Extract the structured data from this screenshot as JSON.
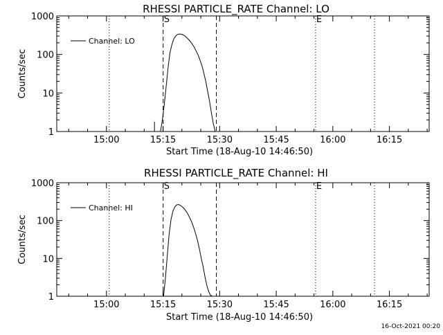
{
  "colors": {
    "background": "#ffffff",
    "foreground": "#000000"
  },
  "footer": {
    "timestamp": "16-Oct-2021 00:20"
  },
  "chart_data": [
    {
      "type": "line",
      "title": "RHESSI PARTICLE_RATE Channel: LO",
      "xlabel": "Start Time (18-Aug-10 14:46:50)",
      "ylabel": "Counts/sec",
      "yscale": "log",
      "ylim": [
        1,
        1000
      ],
      "xlim_minutes_after_start": [
        0,
        98.7
      ],
      "x_ticks": [
        {
          "label": "15:00",
          "minutes": 13.17
        },
        {
          "label": "15:15",
          "minutes": 28.17
        },
        {
          "label": "15:30",
          "minutes": 43.17
        },
        {
          "label": "15:45",
          "minutes": 58.17
        },
        {
          "label": "16:00",
          "minutes": 73.17
        },
        {
          "label": "16:15",
          "minutes": 88.17
        }
      ],
      "y_ticks": [
        {
          "label": "1",
          "value": 1
        },
        {
          "label": "10",
          "value": 10
        },
        {
          "label": "100",
          "value": 100
        },
        {
          "label": "1000",
          "value": 1000
        }
      ],
      "legend": {
        "label": "Channel: LO",
        "position": "top-left"
      },
      "markers": [
        {
          "label": "S",
          "minutes": 28.2,
          "style": "dashed",
          "show_label": true
        },
        {
          "label": "",
          "minutes": 42.3,
          "style": "dashed",
          "show_label": false
        },
        {
          "label": "",
          "minutes": 13.9,
          "style": "dotted",
          "show_label": false
        },
        {
          "label": "E",
          "minutes": 68.6,
          "style": "dotted",
          "show_label": true
        },
        {
          "label": "",
          "minutes": 84.2,
          "style": "dotted",
          "show_label": false
        }
      ],
      "spike": {
        "minutes": 25.9,
        "peak": 1.8
      },
      "series": [
        {
          "name": "Channel: LO",
          "x": [
            27.5,
            28.0,
            28.5,
            29.0,
            29.5,
            30.0,
            30.5,
            31.0,
            31.5,
            32.0,
            32.5,
            33.0,
            33.5,
            34.0,
            34.5,
            35.0,
            35.5,
            36.0,
            36.5,
            37.0,
            37.5,
            38.0,
            38.5,
            39.0,
            39.5,
            40.0,
            40.5,
            41.0,
            41.5,
            42.0
          ],
          "y": [
            1,
            2,
            5,
            15,
            45,
            110,
            180,
            250,
            300,
            330,
            340,
            335,
            320,
            300,
            270,
            240,
            210,
            180,
            150,
            120,
            95,
            70,
            50,
            32,
            20,
            11,
            6,
            3,
            1.6,
            1
          ]
        }
      ]
    },
    {
      "type": "line",
      "title": "RHESSI PARTICLE_RATE Channel: HI",
      "xlabel": "Start Time (18-Aug-10 14:46:50)",
      "ylabel": "Counts/sec",
      "yscale": "log",
      "ylim": [
        1,
        1000
      ],
      "xlim_minutes_after_start": [
        0,
        98.7
      ],
      "x_ticks": [
        {
          "label": "15:00",
          "minutes": 13.17
        },
        {
          "label": "15:15",
          "minutes": 28.17
        },
        {
          "label": "15:30",
          "minutes": 43.17
        },
        {
          "label": "15:45",
          "minutes": 58.17
        },
        {
          "label": "16:00",
          "minutes": 73.17
        },
        {
          "label": "16:15",
          "minutes": 88.17
        }
      ],
      "y_ticks": [
        {
          "label": "1",
          "value": 1
        },
        {
          "label": "10",
          "value": 10
        },
        {
          "label": "100",
          "value": 100
        },
        {
          "label": "1000",
          "value": 1000
        }
      ],
      "legend": {
        "label": "Channel: HI",
        "position": "top-left"
      },
      "markers": [
        {
          "label": "S",
          "minutes": 28.2,
          "style": "dashed",
          "show_label": true
        },
        {
          "label": "",
          "minutes": 42.3,
          "style": "dashed",
          "show_label": false
        },
        {
          "label": "",
          "minutes": 13.9,
          "style": "dotted",
          "show_label": false
        },
        {
          "label": "E",
          "minutes": 68.6,
          "style": "dotted",
          "show_label": true
        },
        {
          "label": "",
          "minutes": 84.2,
          "style": "dotted",
          "show_label": false
        }
      ],
      "series": [
        {
          "name": "Channel: HI",
          "x": [
            28.3,
            28.8,
            29.3,
            29.8,
            30.3,
            30.8,
            31.3,
            31.8,
            32.3,
            32.8,
            33.3,
            33.8,
            34.3,
            34.8,
            35.3,
            35.8,
            36.3,
            36.8,
            37.3,
            37.8,
            38.3,
            38.8,
            39.3,
            39.8,
            40.3,
            40.8,
            41.3
          ],
          "y": [
            1,
            3,
            12,
            45,
            110,
            180,
            230,
            260,
            265,
            250,
            230,
            205,
            175,
            145,
            115,
            90,
            65,
            45,
            30,
            18,
            10,
            6,
            3.2,
            1.9,
            1.3,
            1.05,
            1
          ]
        }
      ]
    }
  ]
}
